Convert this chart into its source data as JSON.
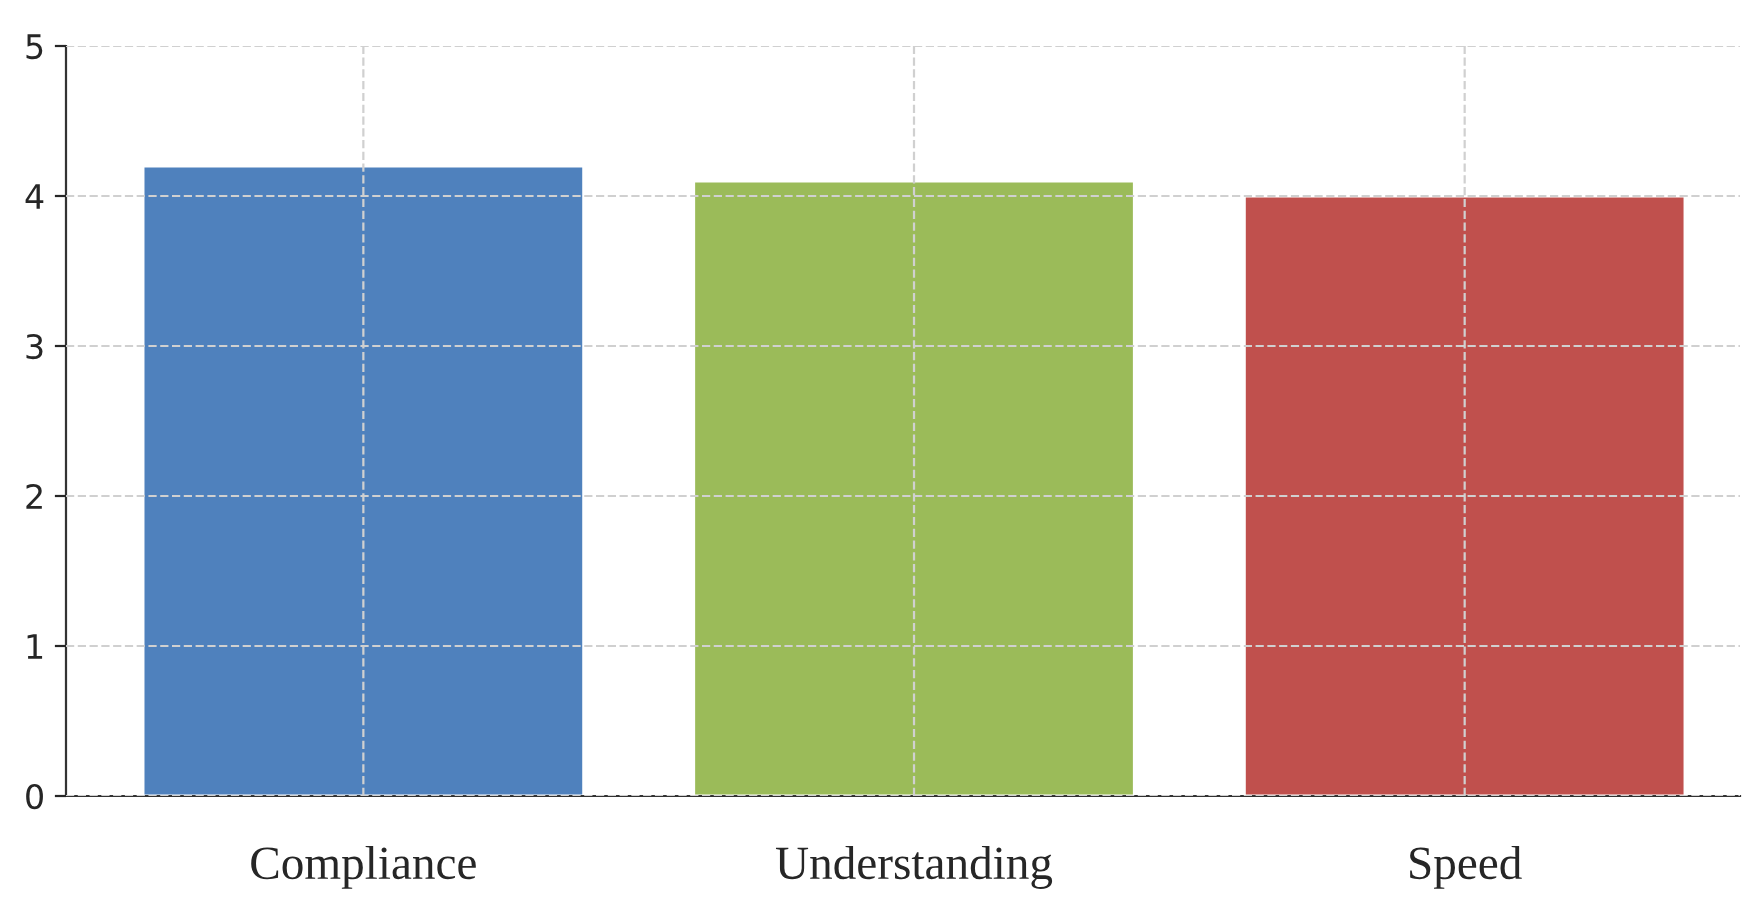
{
  "chart_data": {
    "type": "bar",
    "categories": [
      "Compliance",
      "Understanding",
      "Speed"
    ],
    "values": [
      4.2,
      4.1,
      4.0
    ],
    "colors": [
      "#4f81bd",
      "#9bbb59",
      "#c0504d"
    ],
    "ylim": [
      0,
      5
    ],
    "yticks": [
      0,
      1,
      2,
      3,
      4,
      5
    ],
    "grid": true
  }
}
